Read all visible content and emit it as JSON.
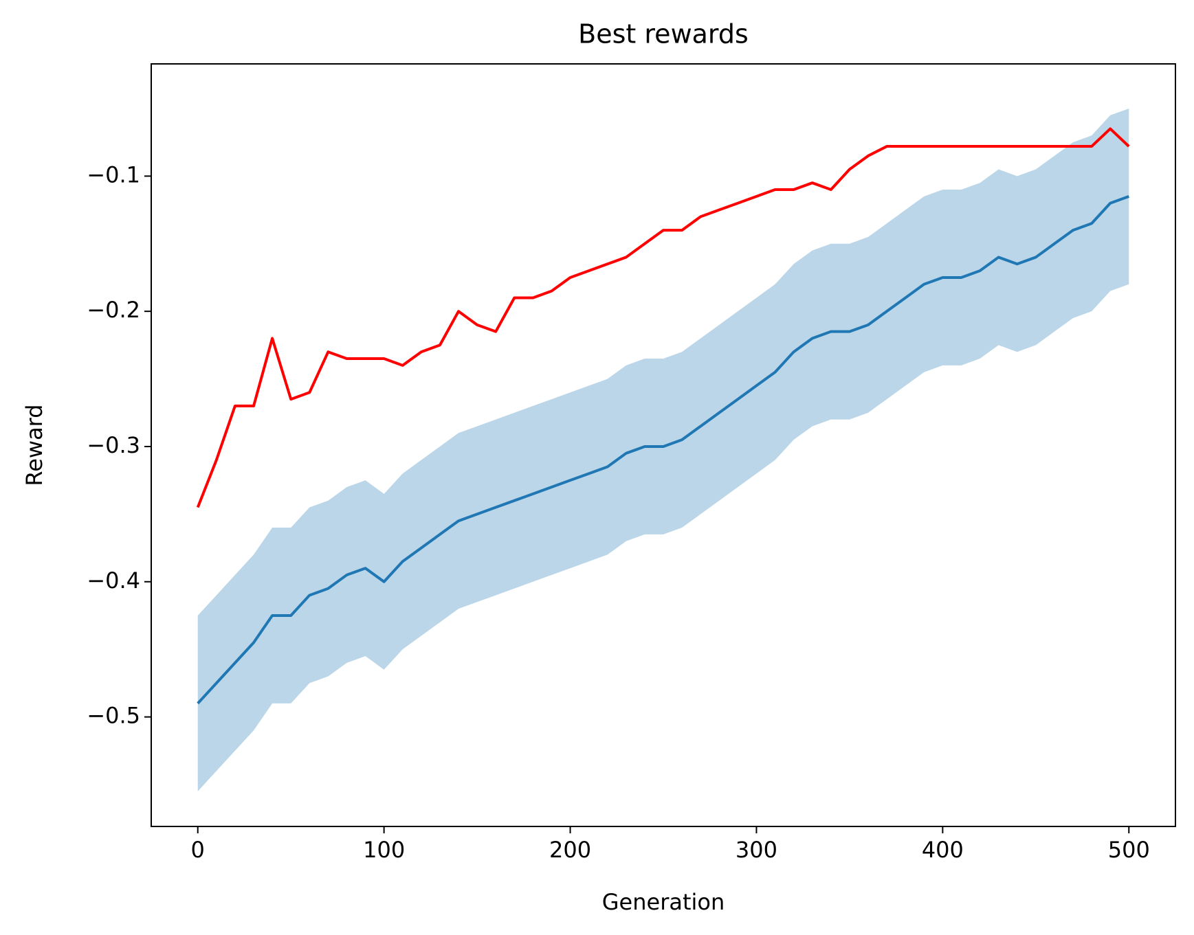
{
  "chart_data": {
    "type": "line",
    "title": "Best rewards",
    "xlabel": "Generation",
    "ylabel": "Reward",
    "x": [
      0,
      10,
      20,
      30,
      40,
      50,
      60,
      70,
      80,
      90,
      100,
      110,
      120,
      130,
      140,
      150,
      160,
      170,
      180,
      190,
      200,
      210,
      220,
      230,
      240,
      250,
      260,
      270,
      280,
      290,
      300,
      310,
      320,
      330,
      340,
      350,
      360,
      370,
      380,
      390,
      400,
      410,
      420,
      430,
      440,
      450,
      460,
      470,
      480,
      490,
      500
    ],
    "band": {
      "color": "#bbd6e8",
      "upper": [
        -0.425,
        -0.41,
        -0.395,
        -0.38,
        -0.36,
        -0.36,
        -0.345,
        -0.34,
        -0.33,
        -0.325,
        -0.335,
        -0.32,
        -0.31,
        -0.3,
        -0.29,
        -0.285,
        -0.28,
        -0.275,
        -0.27,
        -0.265,
        -0.26,
        -0.255,
        -0.25,
        -0.24,
        -0.235,
        -0.235,
        -0.23,
        -0.22,
        -0.21,
        -0.2,
        -0.19,
        -0.18,
        -0.165,
        -0.155,
        -0.15,
        -0.15,
        -0.145,
        -0.135,
        -0.125,
        -0.115,
        -0.11,
        -0.11,
        -0.105,
        -0.095,
        -0.1,
        -0.095,
        -0.085,
        -0.075,
        -0.07,
        -0.055,
        -0.05
      ],
      "lower": [
        -0.555,
        -0.54,
        -0.525,
        -0.51,
        -0.49,
        -0.49,
        -0.475,
        -0.47,
        -0.46,
        -0.455,
        -0.465,
        -0.45,
        -0.44,
        -0.43,
        -0.42,
        -0.415,
        -0.41,
        -0.405,
        -0.4,
        -0.395,
        -0.39,
        -0.385,
        -0.38,
        -0.37,
        -0.365,
        -0.365,
        -0.36,
        -0.35,
        -0.34,
        -0.33,
        -0.32,
        -0.31,
        -0.295,
        -0.285,
        -0.28,
        -0.28,
        -0.275,
        -0.265,
        -0.255,
        -0.245,
        -0.24,
        -0.24,
        -0.235,
        -0.225,
        -0.23,
        -0.225,
        -0.215,
        -0.205,
        -0.2,
        -0.185,
        -0.18
      ]
    },
    "series": [
      {
        "color": "#1f77b4",
        "values": [
          -0.49,
          -0.475,
          -0.46,
          -0.445,
          -0.425,
          -0.425,
          -0.41,
          -0.405,
          -0.395,
          -0.39,
          -0.4,
          -0.385,
          -0.375,
          -0.365,
          -0.355,
          -0.35,
          -0.345,
          -0.34,
          -0.335,
          -0.33,
          -0.325,
          -0.32,
          -0.315,
          -0.305,
          -0.3,
          -0.3,
          -0.295,
          -0.285,
          -0.275,
          -0.265,
          -0.255,
          -0.245,
          -0.23,
          -0.22,
          -0.215,
          -0.215,
          -0.21,
          -0.2,
          -0.19,
          -0.18,
          -0.175,
          -0.175,
          -0.17,
          -0.16,
          -0.165,
          -0.16,
          -0.15,
          -0.14,
          -0.135,
          -0.12,
          -0.115
        ]
      },
      {
        "color": "#ff0000",
        "values": [
          -0.345,
          -0.31,
          -0.27,
          -0.27,
          -0.22,
          -0.265,
          -0.26,
          -0.23,
          -0.235,
          -0.235,
          -0.235,
          -0.24,
          -0.23,
          -0.225,
          -0.2,
          -0.21,
          -0.215,
          -0.19,
          -0.19,
          -0.185,
          -0.175,
          -0.17,
          -0.165,
          -0.16,
          -0.15,
          -0.14,
          -0.14,
          -0.13,
          -0.125,
          -0.12,
          -0.115,
          -0.11,
          -0.11,
          -0.105,
          -0.11,
          -0.095,
          -0.085,
          -0.078,
          -0.078,
          -0.078,
          -0.078,
          -0.078,
          -0.078,
          -0.078,
          -0.078,
          -0.078,
          -0.078,
          -0.078,
          -0.078,
          -0.065,
          -0.078
        ]
      }
    ],
    "xlim": [
      -25,
      525
    ],
    "ylim": [
      -0.581,
      -0.017
    ],
    "xticks": [
      0,
      100,
      200,
      300,
      400,
      500
    ],
    "yticks": [
      {
        "value": -0.5,
        "label": "−0.5"
      },
      {
        "value": -0.4,
        "label": "−0.4"
      },
      {
        "value": -0.3,
        "label": "−0.3"
      },
      {
        "value": -0.2,
        "label": "−0.2"
      },
      {
        "value": -0.1,
        "label": "−0.1"
      }
    ]
  }
}
